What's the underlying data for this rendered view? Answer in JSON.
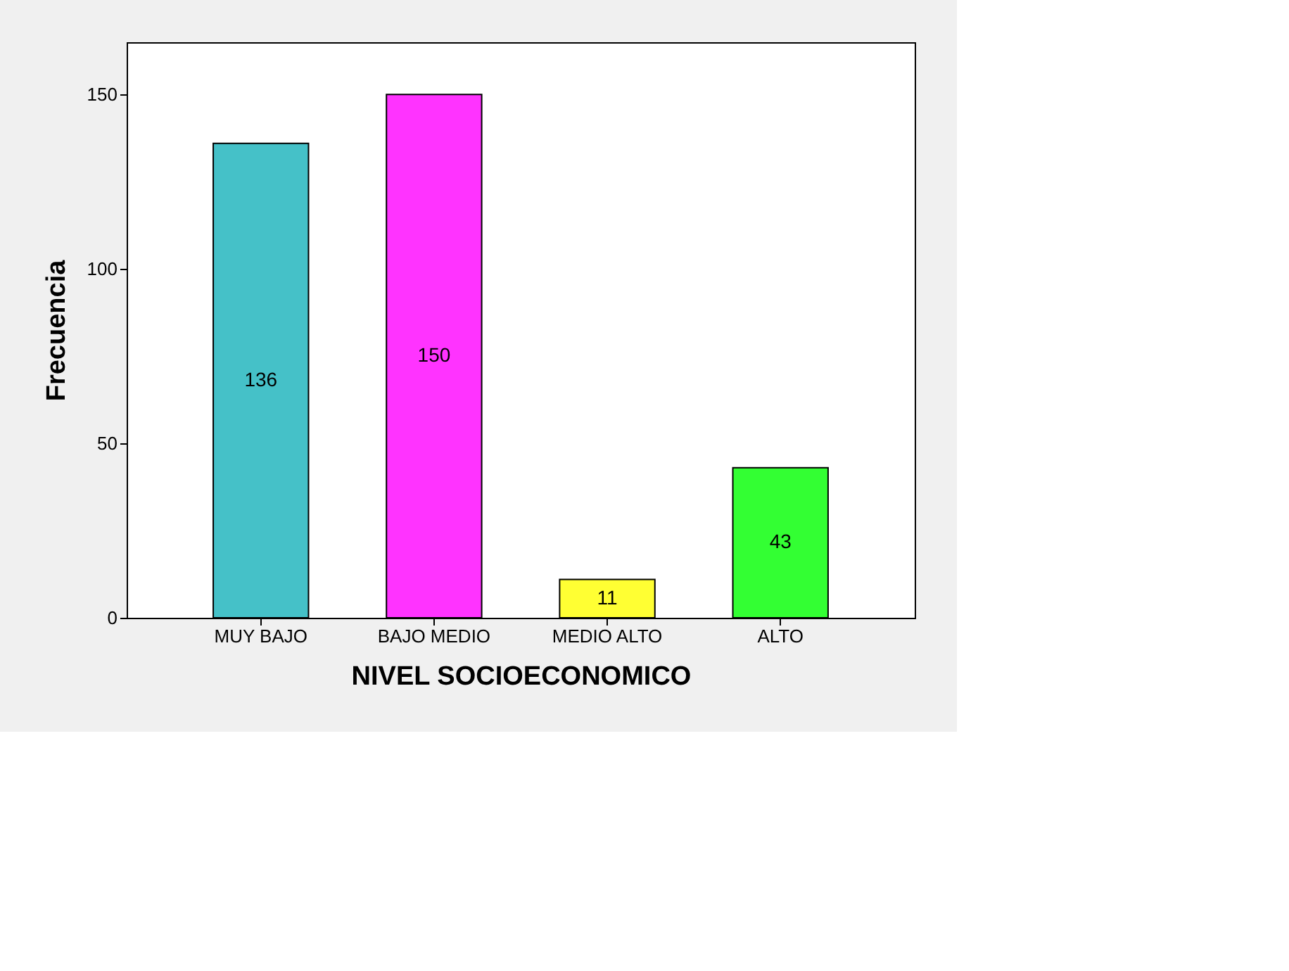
{
  "chart_data": {
    "type": "bar",
    "xlabel": "NIVEL SOCIOECONOMICO",
    "ylabel": "Frecuencia",
    "categories": [
      "MUY BAJO",
      "BAJO MEDIO",
      "MEDIO ALTO",
      "ALTO"
    ],
    "values": [
      136,
      150,
      11,
      43
    ],
    "colors": [
      "#45c1c8",
      "#ff33ff",
      "#ffff33",
      "#33ff33"
    ],
    "ylim": [
      0,
      165
    ],
    "yticks": [
      0,
      50,
      100,
      150
    ],
    "grid": false,
    "data_labels": true
  }
}
